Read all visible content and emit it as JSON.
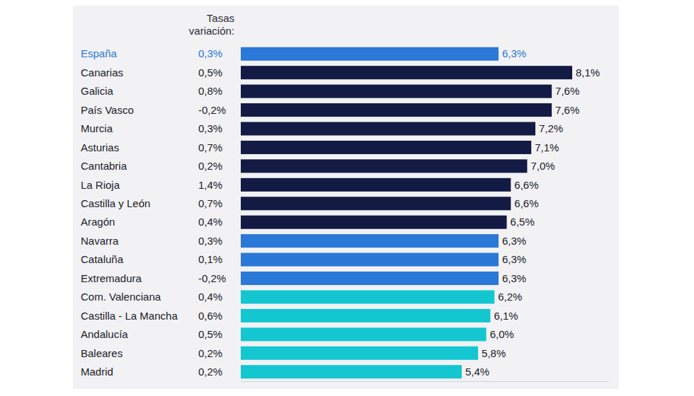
{
  "chart_data": {
    "type": "bar",
    "orientation": "horizontal",
    "data_labels": true,
    "tick_labels": "y",
    "categories": [
      "España",
      "Canarias",
      "Galicia",
      "País Vasco",
      "Murcia",
      "Asturias",
      "Cantabria",
      "La Rioja",
      "Castilla y León",
      "Aragón",
      "Navarra",
      "Cataluña",
      "Extremadura",
      "Com. Valenciana",
      "Castilla - La Mancha",
      "Andalucía",
      "Baleares",
      "Madrid"
    ],
    "values": [
      6.3,
      8.1,
      7.6,
      7.6,
      7.2,
      7.1,
      7.0,
      6.6,
      6.6,
      6.5,
      6.3,
      6.3,
      6.3,
      6.2,
      6.1,
      6.0,
      5.8,
      5.4
    ],
    "value_labels": [
      "6,3%",
      "8,1%",
      "7,6%",
      "7,6%",
      "7,2%",
      "7,1%",
      "7,0%",
      "6,6%",
      "6,6%",
      "6,5%",
      "6,3%",
      "6,3%",
      "6,3%",
      "6,2%",
      "6,1%",
      "6,0%",
      "5,8%",
      "5,4%"
    ],
    "colors": [
      "#2a78d8",
      "#131b44",
      "#131b44",
      "#131b44",
      "#131b44",
      "#131b44",
      "#131b44",
      "#131b44",
      "#131b44",
      "#131b44",
      "#2a78d8",
      "#2a78d8",
      "#2a78d8",
      "#13c6d0",
      "#13c6d0",
      "#13c6d0",
      "#13c6d0",
      "#13c6d0"
    ],
    "xlim": [
      0,
      9
    ],
    "variation": {
      "title": [
        "Tasas",
        "variación:"
      ],
      "values": [
        0.3,
        0.5,
        0.8,
        -0.2,
        0.3,
        0.7,
        0.2,
        1.4,
        0.7,
        0.4,
        0.3,
        0.1,
        -0.2,
        0.4,
        0.6,
        0.5,
        0.2,
        0.2
      ],
      "value_labels": [
        "0,3%",
        "0,5%",
        "0,8%",
        "-0,2%",
        "0,3%",
        "0,7%",
        "0,2%",
        "1,4%",
        "0,7%",
        "0,4%",
        "0,3%",
        "0,1%",
        "-0,2%",
        "0,4%",
        "0,6%",
        "0,5%",
        "0,2%",
        "0,2%"
      ]
    }
  }
}
